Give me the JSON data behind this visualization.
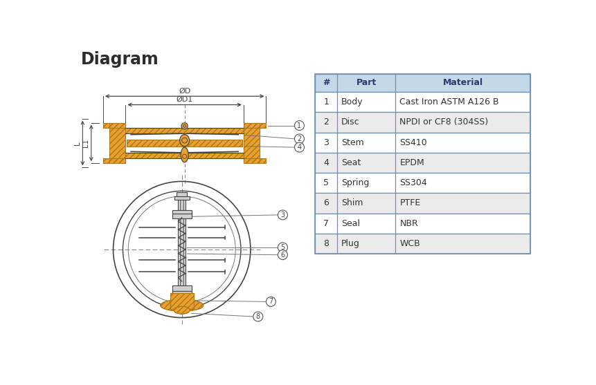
{
  "title": "Diagram",
  "title_color": "#2c2c2c",
  "title_fontsize": 17,
  "bg_color": "#ffffff",
  "orange_fill": "#E8A030",
  "orange_edge": "#B07818",
  "line_color": "#555555",
  "dark_line": "#444444",
  "thin_line": "#777777",
  "table_header_bg": "#c5d8e8",
  "table_header_text": "#2a3a6a",
  "table_row_bg1": "#ffffff",
  "table_row_bg2": "#ebebeb",
  "table_border": "#7090b0",
  "table_text": "#333333",
  "callout_bg": "#ffffff",
  "callout_edge": "#555555",
  "parts": [
    {
      "num": "1",
      "part": "Body",
      "material": "Cast Iron ASTM A126 B"
    },
    {
      "num": "2",
      "part": "Disc",
      "material": "NPDI or CF8 (304SS)"
    },
    {
      "num": "3",
      "part": "Stem",
      "material": "SS410"
    },
    {
      "num": "4",
      "part": "Seat",
      "material": "EPDM"
    },
    {
      "num": "5",
      "part": "Spring",
      "material": "SS304"
    },
    {
      "num": "6",
      "part": "Shim",
      "material": "PTFE"
    },
    {
      "num": "7",
      "part": "Seal",
      "material": "NBR"
    },
    {
      "num": "8",
      "part": "Plug",
      "material": "WCB"
    }
  ],
  "dim_labels": [
    "ØD",
    "ØD1",
    "L1",
    "L"
  ]
}
